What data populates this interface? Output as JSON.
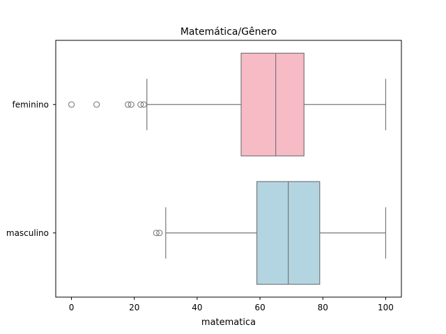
{
  "chart_data": {
    "type": "boxplot",
    "title": "Matemática/Gênero",
    "xlabel": "matematica",
    "ylabel": "",
    "xlim": [
      -5,
      105
    ],
    "xticks": [
      0,
      20,
      40,
      60,
      80,
      100
    ],
    "orientation": "horizontal",
    "grid": false,
    "series": [
      {
        "name": "feminino",
        "color": "#f7bbc6",
        "whisker_low": 24,
        "q1": 54,
        "median": 65,
        "q3": 74,
        "whisker_high": 100,
        "outliers": [
          0,
          8,
          18,
          19,
          22,
          23
        ]
      },
      {
        "name": "masculino",
        "color": "#b3d5e1",
        "whisker_low": 30,
        "q1": 59,
        "median": 69,
        "q3": 79,
        "whisker_high": 100,
        "outliers": [
          27,
          28
        ]
      }
    ]
  }
}
